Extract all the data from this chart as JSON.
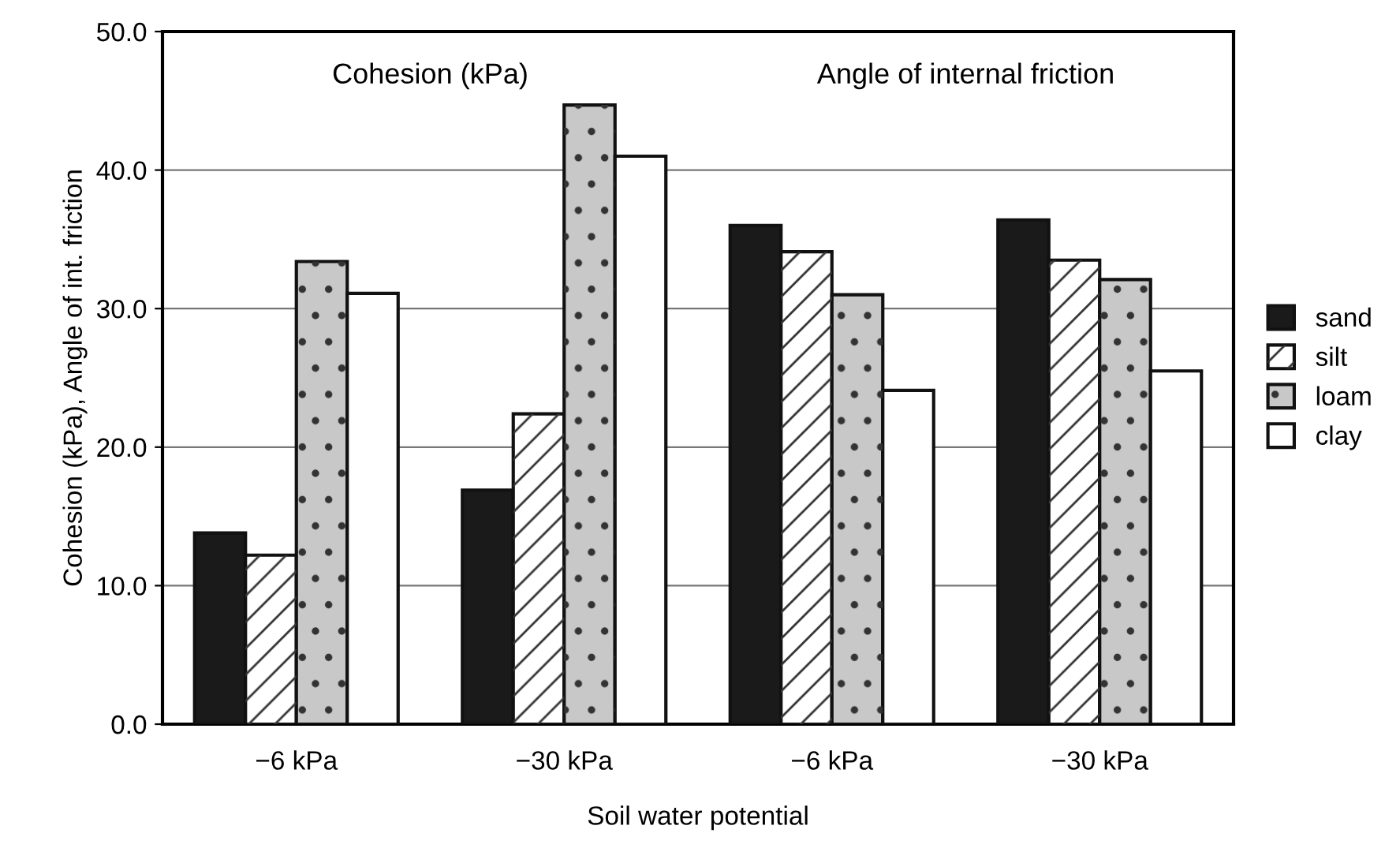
{
  "chart_data": {
    "type": "bar",
    "xlabel": "Soil water potential",
    "ylabel": "Cohesion (kPa), Angle of int. friction",
    "categories": [
      "−6 kPa",
      "−30 kPa",
      "−6 kPa",
      "−30 kPa"
    ],
    "series": [
      {
        "name": "sand",
        "color": "#1a1a1a",
        "values": [
          13.8,
          16.9,
          36.0,
          36.4
        ]
      },
      {
        "name": "silt",
        "color": "#ffffff",
        "values": [
          12.2,
          22.4,
          34.1,
          33.5
        ]
      },
      {
        "name": "loam",
        "color": "#c8c8c8",
        "values": [
          33.4,
          44.7,
          31.0,
          32.1
        ]
      },
      {
        "name": "clay",
        "color": "#ffffff",
        "values": [
          31.1,
          41.0,
          24.1,
          25.5
        ]
      }
    ],
    "ylim": [
      0,
      50
    ],
    "yticks": [
      {
        "value": 0,
        "label": "0.0"
      },
      {
        "value": 10,
        "label": "10.0"
      },
      {
        "value": 20,
        "label": "20.0"
      },
      {
        "value": 30,
        "label": "30.0"
      },
      {
        "value": 40,
        "label": "40.0"
      },
      {
        "value": 50,
        "label": "50.0"
      }
    ],
    "grid": "y",
    "legend": "right",
    "annotations": [
      "Cohesion (kPa)",
      "Angle of internal friction"
    ]
  }
}
